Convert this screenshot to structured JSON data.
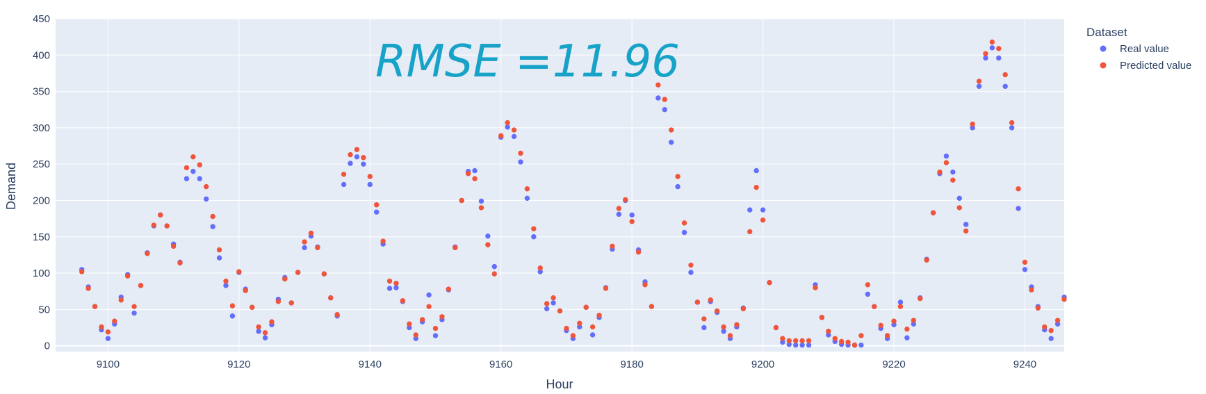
{
  "chart_data": {
    "type": "scatter",
    "xlabel": "Hour",
    "ylabel": "Demand",
    "xlim": [
      9092,
      9246
    ],
    "ylim": [
      -8,
      450
    ],
    "xticks": [
      9100,
      9120,
      9140,
      9160,
      9180,
      9200,
      9220,
      9240
    ],
    "yticks": [
      0,
      50,
      100,
      150,
      200,
      250,
      300,
      350,
      400,
      450
    ],
    "grid": true,
    "legend_title": "Dataset",
    "legend_position": "right",
    "annotation": "RMSE =11.96",
    "x": [
      9096,
      9097,
      9098,
      9099,
      9100,
      9101,
      9102,
      9103,
      9104,
      9105,
      9106,
      9107,
      9108,
      9109,
      9110,
      9111,
      9112,
      9113,
      9114,
      9115,
      9116,
      9117,
      9118,
      9119,
      9120,
      9121,
      9122,
      9123,
      9124,
      9125,
      9126,
      9127,
      9128,
      9129,
      9130,
      9131,
      9132,
      9133,
      9134,
      9135,
      9136,
      9137,
      9138,
      9139,
      9140,
      9141,
      9142,
      9143,
      9144,
      9145,
      9146,
      9147,
      9148,
      9149,
      9150,
      9151,
      9152,
      9153,
      9154,
      9155,
      9156,
      9157,
      9158,
      9159,
      9160,
      9161,
      9162,
      9163,
      9164,
      9165,
      9166,
      9167,
      9168,
      9169,
      9170,
      9171,
      9172,
      9173,
      9174,
      9175,
      9176,
      9177,
      9178,
      9179,
      9180,
      9181,
      9182,
      9183,
      9184,
      9185,
      9186,
      9187,
      9188,
      9189,
      9190,
      9191,
      9192,
      9193,
      9194,
      9195,
      9196,
      9197,
      9198,
      9199,
      9200,
      9201,
      9202,
      9203,
      9204,
      9205,
      9206,
      9207,
      9208,
      9209,
      9210,
      9211,
      9212,
      9213,
      9214,
      9215,
      9216,
      9217,
      9218,
      9219,
      9220,
      9221,
      9222,
      9223,
      9224,
      9225,
      9226,
      9227,
      9228,
      9229,
      9230,
      9231,
      9232,
      9233,
      9234,
      9235,
      9236,
      9237,
      9238,
      9239,
      9240,
      9241,
      9242,
      9243,
      9244,
      9245,
      9246
    ],
    "series": [
      {
        "name": "Real value",
        "color": "#636efa",
        "values": [
          105,
          81,
          54,
          22,
          10,
          30,
          67,
          98,
          45,
          83,
          128,
          165,
          180,
          165,
          140,
          115,
          230,
          240,
          230,
          202,
          164,
          121,
          83,
          41,
          101,
          78,
          53,
          20,
          11,
          29,
          64,
          94,
          59,
          101,
          135,
          151,
          136,
          99,
          66,
          41,
          222,
          251,
          260,
          250,
          222,
          184,
          140,
          79,
          80,
          61,
          25,
          10,
          33,
          70,
          14,
          36,
          77,
          136,
          200,
          240,
          241,
          199,
          151,
          109,
          287,
          301,
          288,
          253,
          203,
          150,
          102,
          51,
          59,
          48,
          21,
          10,
          26,
          53,
          15,
          39,
          80,
          133,
          181,
          200,
          180,
          132,
          88,
          54,
          341,
          325,
          280,
          219,
          156,
          101,
          60,
          25,
          61,
          46,
          20,
          10,
          26,
          52,
          187,
          241,
          187,
          87,
          25,
          5,
          2,
          1,
          1,
          1,
          84,
          39,
          15,
          6,
          2,
          1,
          1,
          1,
          71,
          54,
          24,
          10,
          29,
          60,
          11,
          30,
          66,
          119,
          183,
          237,
          261,
          239,
          203,
          167,
          300,
          357,
          396,
          410,
          396,
          357,
          300,
          189,
          105,
          81,
          54,
          22,
          10,
          30,
          67
        ]
      },
      {
        "name": "Predicted value",
        "color": "#ef553b",
        "values": [
          102,
          79,
          54,
          26,
          19,
          34,
          63,
          96,
          54,
          83,
          127,
          166,
          180,
          165,
          137,
          114,
          245,
          260,
          249,
          219,
          178,
          132,
          89,
          55,
          102,
          76,
          53,
          26,
          18,
          33,
          61,
          92,
          59,
          101,
          143,
          155,
          135,
          99,
          66,
          43,
          236,
          263,
          270,
          259,
          233,
          194,
          144,
          89,
          86,
          62,
          30,
          15,
          36,
          54,
          24,
          40,
          78,
          135,
          200,
          237,
          230,
          190,
          139,
          99,
          289,
          307,
          297,
          265,
          216,
          161,
          107,
          58,
          66,
          48,
          24,
          14,
          31,
          53,
          26,
          42,
          79,
          137,
          189,
          201,
          171,
          129,
          84,
          54,
          359,
          339,
          297,
          233,
          169,
          111,
          60,
          37,
          63,
          48,
          26,
          14,
          29,
          51,
          157,
          218,
          173,
          87,
          25,
          10,
          7,
          7,
          7,
          7,
          80,
          39,
          20,
          10,
          6,
          5,
          1,
          14,
          84,
          54,
          28,
          14,
          34,
          54,
          23,
          35,
          65,
          118,
          183,
          239,
          252,
          228,
          190,
          158,
          305,
          364,
          402,
          418,
          409,
          373,
          307,
          216,
          115,
          77,
          52,
          26,
          21,
          35,
          64
        ]
      }
    ]
  }
}
